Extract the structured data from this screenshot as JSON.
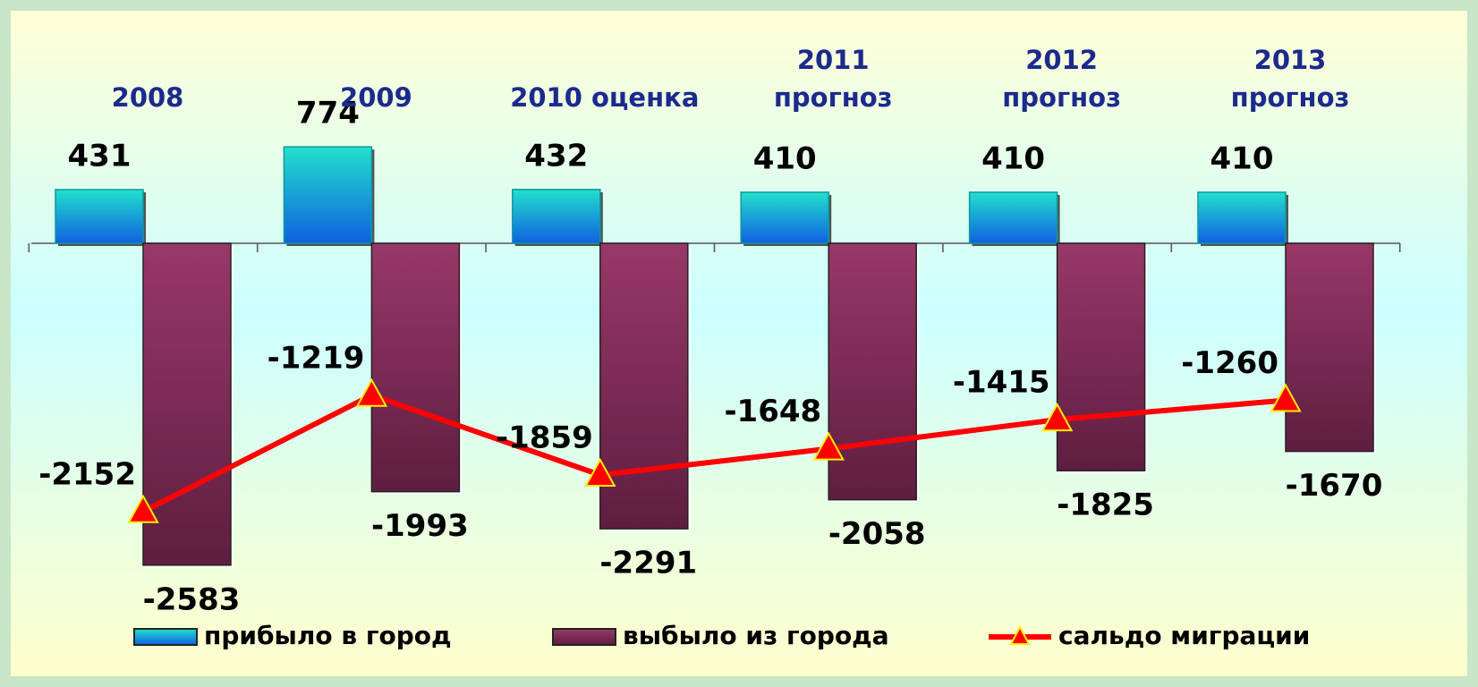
{
  "chart_data": {
    "type": "bar",
    "categories": [
      "2008",
      "2009",
      "2010 оценка",
      "2011\nпрогноз",
      "2012\nпрогноз",
      "2013\nпрогноз"
    ],
    "series": [
      {
        "name": "прибыло в город",
        "color": "#1aa8e0",
        "values": [
          431,
          774,
          432,
          410,
          410,
          410
        ]
      },
      {
        "name": "выбыло из города",
        "color": "#8a2f5e",
        "values": [
          -2583,
          -1993,
          -2291,
          -2058,
          -1825,
          -1670
        ]
      },
      {
        "name": "сальдо миграции",
        "color": "#ff0000",
        "type": "line",
        "values": [
          -2152,
          -1219,
          -1859,
          -1648,
          -1415,
          -1260
        ]
      }
    ]
  }
}
